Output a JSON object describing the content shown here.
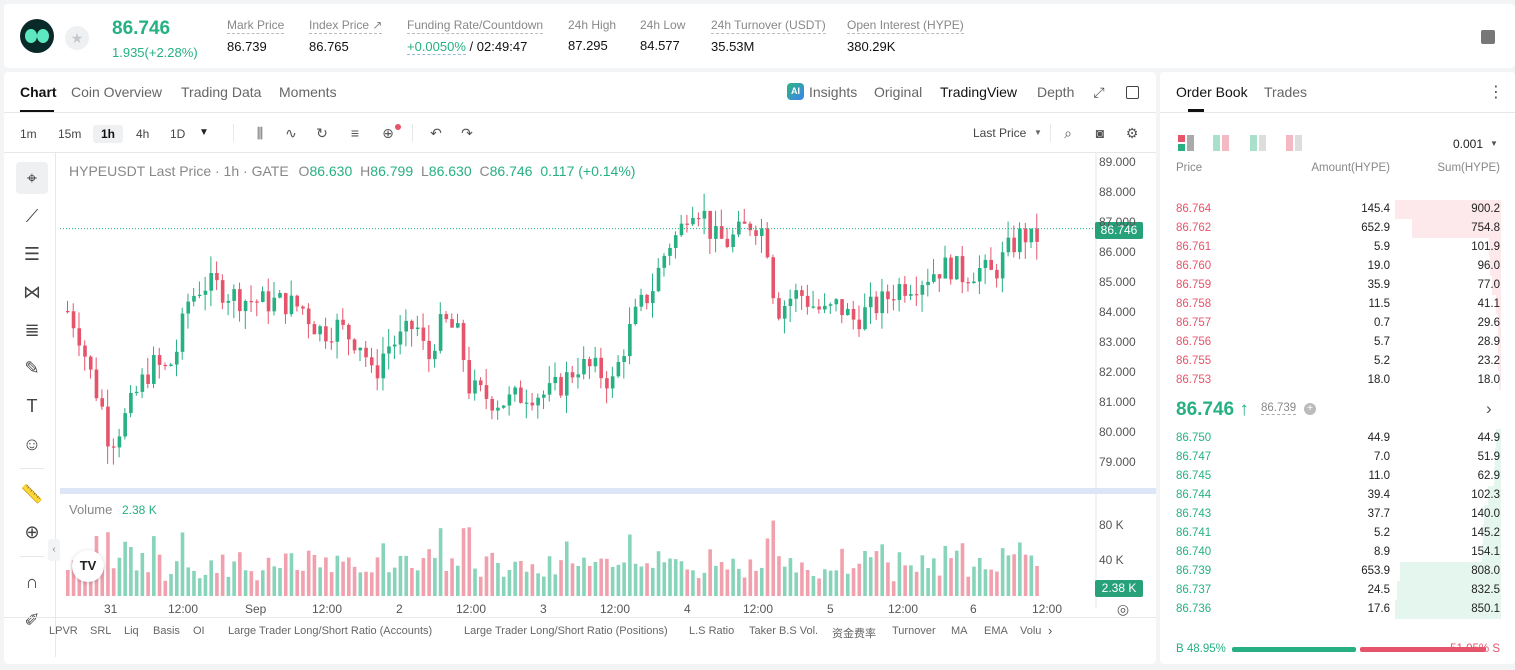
{
  "header": {
    "price": "86.746",
    "change": "1.935(+2.28%)",
    "stats": [
      {
        "label": "Mark Price",
        "value": "86.739"
      },
      {
        "label": "Index Price ↗",
        "value": "86.765"
      },
      {
        "label": "Funding Rate/Countdown",
        "value_rate": "+0.0050%",
        "value_countdown": " / 02:49:47"
      },
      {
        "label": "24h High",
        "value": "87.295"
      },
      {
        "label": "24h Low",
        "value": "84.577"
      },
      {
        "label": "24h Turnover (USDT)",
        "value": "35.53M"
      },
      {
        "label": "Open Interest (HYPE)",
        "value": "380.29K"
      }
    ]
  },
  "chart_tabs": [
    "Chart",
    "Coin Overview",
    "Trading Data",
    "Moments"
  ],
  "view_tabs": {
    "insights": "Insights",
    "original": "Original",
    "tradingview": "TradingView",
    "depth": "Depth"
  },
  "timeframes": [
    "1m",
    "15m",
    "1h",
    "4h",
    "1D"
  ],
  "price_type": "Last Price",
  "legend": {
    "symbol": "HYPEUSDT Last Price · 1h · GATE",
    "o_key": "O",
    "o": "86.630",
    "h_key": "H",
    "h": "86.799",
    "l_key": "L",
    "l": "86.630",
    "c_key": "C",
    "c": "86.746",
    "chg": "0.117 (+0.14%)"
  },
  "volume": {
    "label": "Volume",
    "value": "2.38 K",
    "tag": "2.38 K",
    "axis": [
      "80 K",
      "40 K"
    ]
  },
  "price_axis": [
    "89.000",
    "88.000",
    "87.000",
    "86.000",
    "85.000",
    "84.000",
    "83.000",
    "82.000",
    "81.000",
    "80.000",
    "79.000"
  ],
  "last_price_tag": "86.746",
  "time_axis": [
    "31",
    "12:00",
    "Sep",
    "12:00",
    "2",
    "12:00",
    "3",
    "12:00",
    "4",
    "12:00",
    "5",
    "12:00",
    "6",
    "12:00"
  ],
  "indicators": [
    "LPVR",
    "SRL",
    "Liq",
    "Basis",
    "OI",
    "Large Trader Long/Short Ratio (Accounts)",
    "Large Trader Long/Short Ratio (Positions)",
    "L.S Ratio",
    "Taker B.S Vol.",
    "资金费率",
    "Turnover",
    "MA",
    "EMA",
    "Volu"
  ],
  "colors": {
    "up": "#26b083",
    "down": "#e5546b",
    "accent": "#26a17a"
  },
  "orderbook": {
    "tabs": [
      "Order Book",
      "Trades"
    ],
    "precision": "0.001",
    "headers": [
      "Price",
      "Amount(HYPE)",
      "Sum(HYPE)"
    ],
    "asks": [
      {
        "price": "86.764",
        "amount": "145.4",
        "sum": "900.2",
        "depth": 1.0
      },
      {
        "price": "86.762",
        "amount": "652.9",
        "sum": "754.8",
        "depth": 0.84
      },
      {
        "price": "86.761",
        "amount": "5.9",
        "sum": "101.9",
        "depth": 0.11
      },
      {
        "price": "86.760",
        "amount": "19.0",
        "sum": "96.0",
        "depth": 0.1
      },
      {
        "price": "86.759",
        "amount": "35.9",
        "sum": "77.0",
        "depth": 0.085
      },
      {
        "price": "86.758",
        "amount": "11.5",
        "sum": "41.1",
        "depth": 0.045
      },
      {
        "price": "86.757",
        "amount": "0.7",
        "sum": "29.6",
        "depth": 0.033
      },
      {
        "price": "86.756",
        "amount": "5.7",
        "sum": "28.9",
        "depth": 0.032
      },
      {
        "price": "86.755",
        "amount": "5.2",
        "sum": "23.2",
        "depth": 0.026
      },
      {
        "price": "86.753",
        "amount": "18.0",
        "sum": "18.0",
        "depth": 0.02
      }
    ],
    "mid_price": "86.746 ↑",
    "mid_mark": "86.739",
    "bids": [
      {
        "price": "86.750",
        "amount": "44.9",
        "sum": "44.9",
        "depth": 0.05
      },
      {
        "price": "86.747",
        "amount": "7.0",
        "sum": "51.9",
        "depth": 0.06
      },
      {
        "price": "86.745",
        "amount": "11.0",
        "sum": "62.9",
        "depth": 0.07
      },
      {
        "price": "86.744",
        "amount": "39.4",
        "sum": "102.3",
        "depth": 0.12
      },
      {
        "price": "86.743",
        "amount": "37.7",
        "sum": "140.0",
        "depth": 0.16
      },
      {
        "price": "86.741",
        "amount": "5.2",
        "sum": "145.2",
        "depth": 0.17
      },
      {
        "price": "86.740",
        "amount": "8.9",
        "sum": "154.1",
        "depth": 0.18
      },
      {
        "price": "86.739",
        "amount": "653.9",
        "sum": "808.0",
        "depth": 0.95
      },
      {
        "price": "86.737",
        "amount": "24.5",
        "sum": "832.5",
        "depth": 0.98
      },
      {
        "price": "86.736",
        "amount": "17.6",
        "sum": "850.1",
        "depth": 1.0
      }
    ],
    "buy_ratio": "B 48.95%",
    "sell_ratio": "51.05% S",
    "buy_fraction": 0.4895
  }
}
